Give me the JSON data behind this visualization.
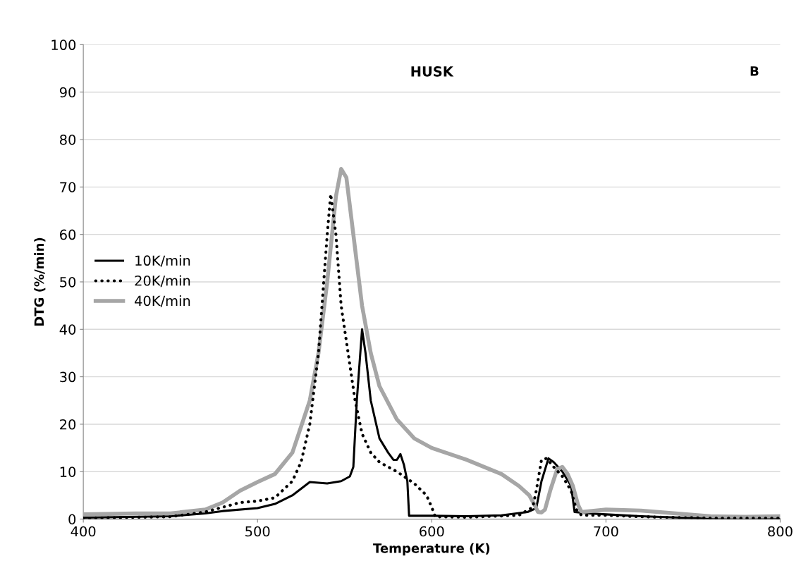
{
  "chart_data": {
    "type": "line",
    "title": "HUSK",
    "xlabel": "Temperature (K)",
    "ylabel": "DTG (%/min)",
    "annotations": [
      "B"
    ],
    "xlim": [
      400,
      800
    ],
    "xticks": [
      400,
      500,
      600,
      700,
      800
    ],
    "ylim": [
      0,
      100
    ],
    "yticks": [
      0,
      10,
      20,
      30,
      40,
      50,
      60,
      70,
      80,
      90,
      100
    ],
    "grid": "y",
    "legend": "center left",
    "marker": "none",
    "series": [
      {
        "name": "10K/min",
        "color": "#000000",
        "line_style": "solid",
        "x": [
          400,
          450,
          470,
          480,
          500,
          510,
          520,
          530,
          540,
          548,
          553,
          555,
          557,
          560,
          562,
          565,
          570,
          575,
          578,
          580,
          582,
          584,
          586,
          587,
          600,
          620,
          640,
          655,
          660,
          663,
          667,
          670,
          675,
          680,
          682,
          690,
          700,
          720,
          760,
          800
        ],
        "values": [
          0.3,
          0.6,
          1.2,
          1.7,
          2.3,
          3.2,
          5,
          7.8,
          7.5,
          8,
          9,
          11,
          25,
          40,
          35,
          25,
          17,
          14,
          12.5,
          12.5,
          13.7,
          11.5,
          8,
          0.7,
          0.7,
          0.6,
          0.8,
          1.5,
          2.3,
          8,
          12.8,
          12,
          10,
          7,
          1.5,
          1.2,
          1,
          0.6,
          0.1,
          0
        ]
      },
      {
        "name": "20K/min",
        "color": "#000000",
        "line_style": "dotted",
        "x": [
          400,
          450,
          470,
          480,
          490,
          500,
          510,
          520,
          525,
          530,
          535,
          538,
          540,
          542,
          545,
          548,
          552,
          556,
          560,
          565,
          570,
          580,
          590,
          597,
          600,
          602,
          620,
          650,
          658,
          660,
          663,
          666,
          670,
          675,
          680,
          683,
          686,
          700,
          720,
          760,
          800
        ],
        "values": [
          0.2,
          0.5,
          1.5,
          2.5,
          3.5,
          3.8,
          4.5,
          8,
          12,
          20,
          35,
          50,
          60,
          68.5,
          60,
          45,
          35,
          25,
          18,
          14,
          12,
          10,
          7.5,
          5,
          2.5,
          0.5,
          0.4,
          0.8,
          2.5,
          6,
          12.5,
          12.8,
          11,
          9,
          6,
          2,
          0.8,
          0.8,
          0.5,
          0.2,
          0.2
        ]
      },
      {
        "name": "40K/min",
        "color": "#a6a6a6",
        "line_style": "solid",
        "x": [
          400,
          430,
          450,
          470,
          480,
          490,
          500,
          510,
          520,
          530,
          535,
          540,
          545,
          548,
          551,
          555,
          560,
          565,
          570,
          580,
          590,
          600,
          620,
          640,
          650,
          656,
          659,
          661,
          663,
          665,
          668,
          672,
          675,
          678,
          681,
          684,
          686,
          700,
          720,
          740,
          760,
          780,
          800
        ],
        "values": [
          1,
          1.2,
          1.2,
          2,
          3.5,
          6,
          7.8,
          9.5,
          14,
          25,
          35,
          50,
          68,
          73.8,
          72,
          60,
          45,
          35,
          28,
          21,
          17,
          15,
          12.5,
          9.5,
          7,
          5,
          3,
          1.5,
          1.4,
          2,
          6,
          10.5,
          11,
          9.5,
          7,
          3,
          1.5,
          2,
          1.8,
          1.2,
          0.6,
          0.5,
          0.6
        ]
      }
    ]
  }
}
